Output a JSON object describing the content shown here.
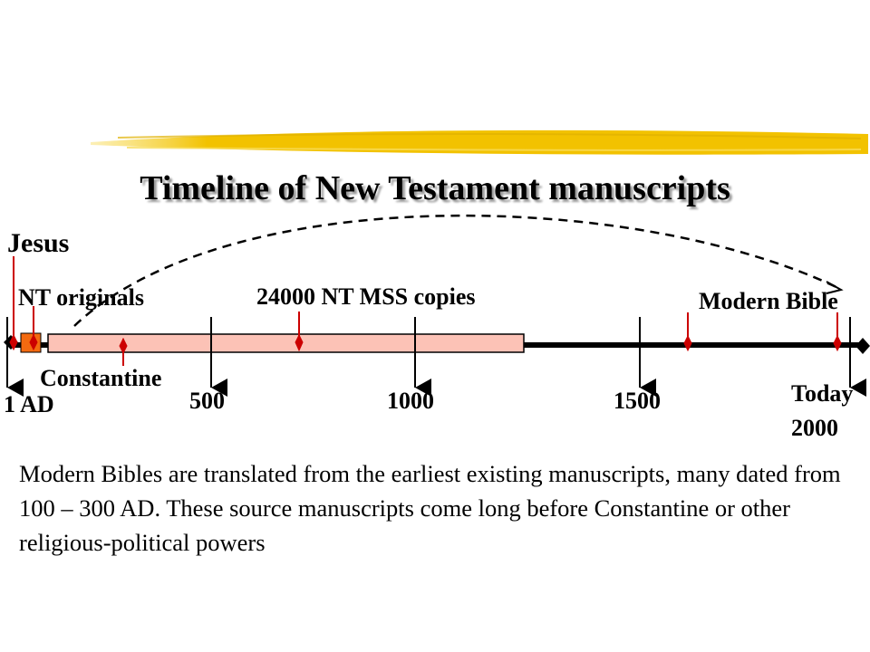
{
  "slide": {
    "title": "Timeline of New Testament manuscripts",
    "body_text": "Modern Bibles are translated from the earliest existing manuscripts, many dated from 100 – 300 AD.  These source manuscripts come long before Constantine or other religious-political powers"
  },
  "timeline": {
    "markers": {
      "jesus": "Jesus",
      "nt_originals": "NT originals",
      "mss_copies": "24000 NT MSS copies",
      "modern_bible": "Modern Bible",
      "constantine": "Constantine"
    },
    "ticks": {
      "start": "1 AD",
      "t500": "500",
      "t1000": "1000",
      "t1500": "1500",
      "today": "Today",
      "end": "2000"
    }
  },
  "colors": {
    "brush": "#f2c200",
    "marker": "#cc0000",
    "originals_box": "#f36a10",
    "copies_bar_fill": "#fcc2b6",
    "axis": "#000000"
  }
}
